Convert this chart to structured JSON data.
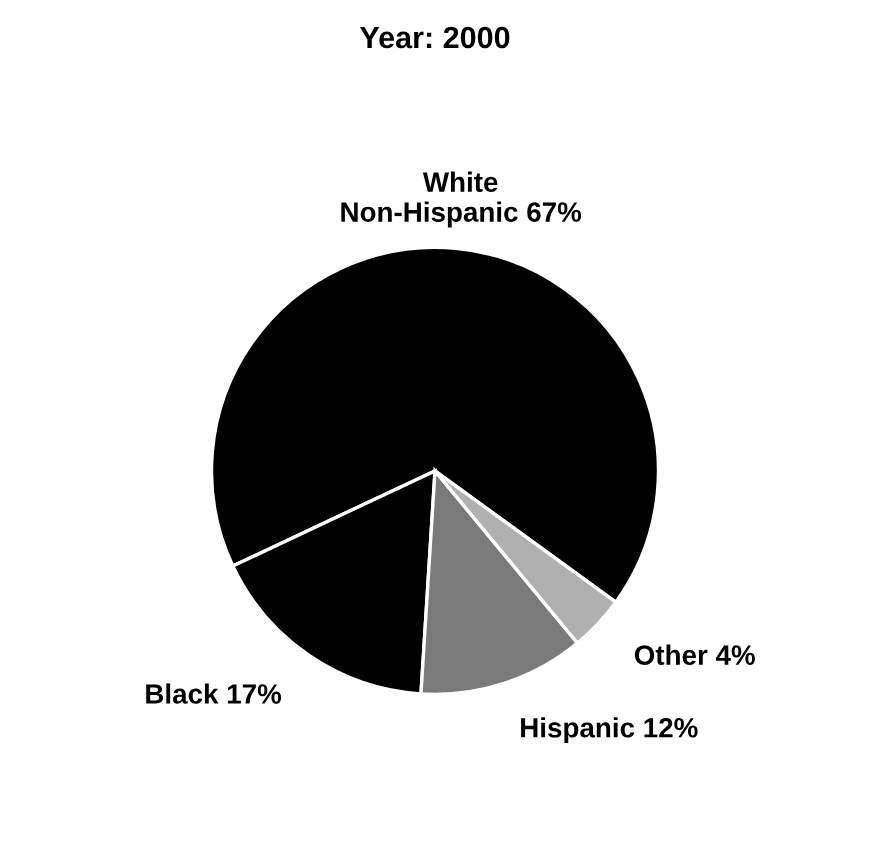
{
  "chart_data": {
    "type": "pie",
    "title": "Year: 2000",
    "categories": [
      "White\nNon-Hispanic 67%",
      "Black 17%",
      "Hispanic 12%",
      "Other 4%"
    ],
    "values": [
      67,
      17,
      12,
      4
    ],
    "colors": [
      "#000000",
      "#000000",
      "#7a7a7a",
      "#b0b0b0"
    ]
  }
}
